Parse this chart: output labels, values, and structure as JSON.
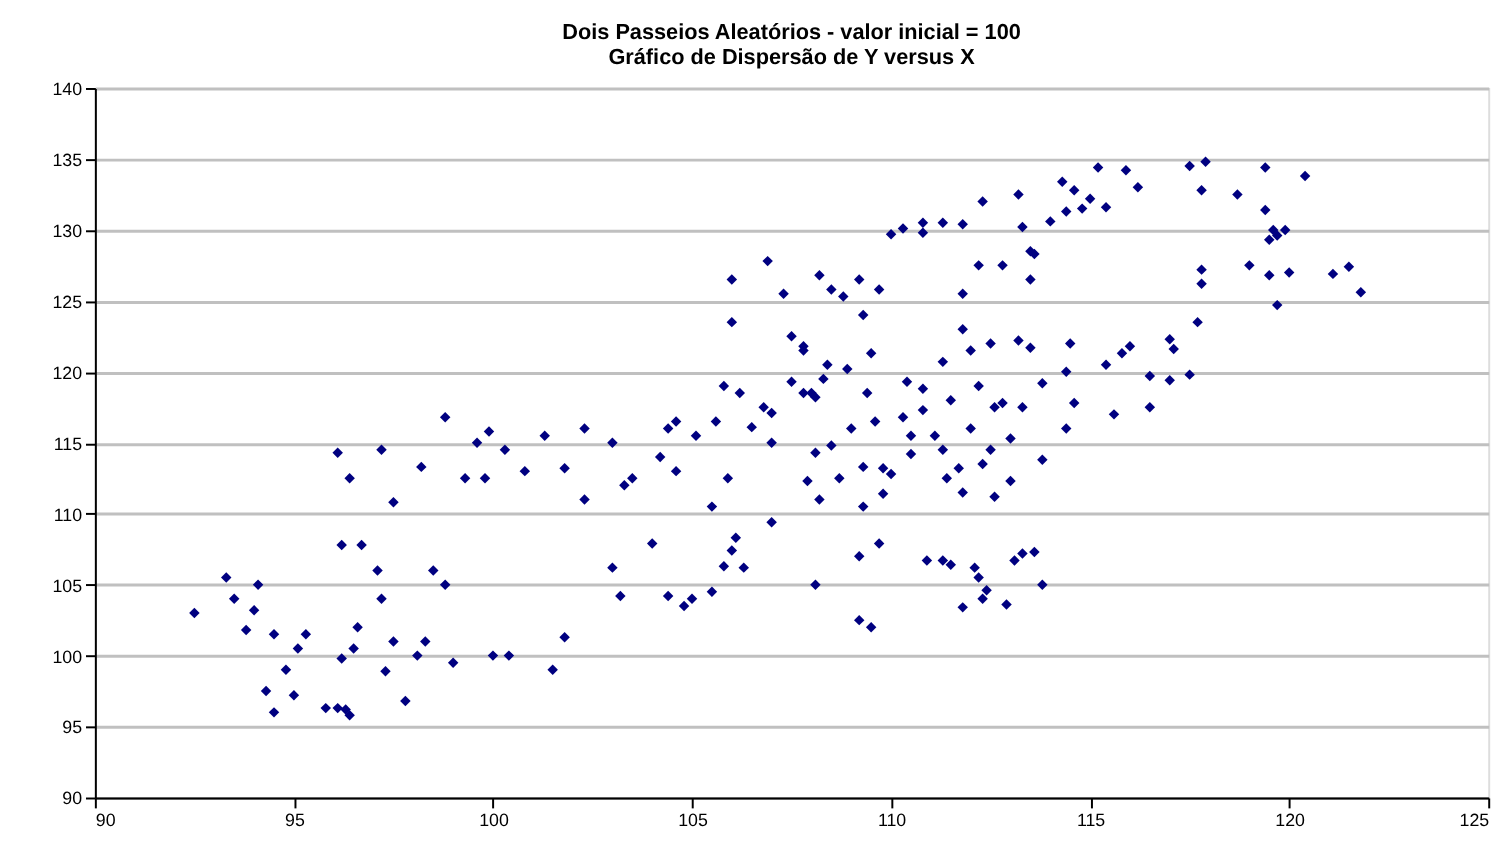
{
  "chart_data": {
    "type": "scatter",
    "title": "Dois Passeios Aleatórios - valor inicial = 100",
    "subtitle": "Gráfico de Dispersão de Y versus X",
    "xlim": [
      90,
      125
    ],
    "xticks": [
      90,
      95,
      100,
      105,
      110,
      115,
      120,
      125
    ],
    "ylim": [
      90,
      140
    ],
    "yticks": [
      90,
      95,
      100,
      105,
      110,
      115,
      120,
      125,
      130,
      135,
      140
    ],
    "grid": "y",
    "marker": "diamond",
    "series": [
      {
        "color": "#000080",
        "x": [
          92.5,
          93.3,
          93.5,
          93.8,
          94.0,
          94.1,
          94.5,
          94.8,
          95.0,
          95.1,
          94.3,
          94.5,
          95.3,
          95.8,
          96.1,
          96.3,
          96.4,
          96.2,
          96.5,
          96.6,
          96.2,
          96.7,
          97.1,
          97.2,
          97.3,
          97.5,
          97.8,
          98.1,
          98.3,
          98.5,
          98.8,
          99.0,
          100.0,
          100.4,
          101.5,
          101.8,
          96.1,
          96.4,
          97.2,
          97.5,
          98.2,
          98.8,
          99.3,
          99.8,
          99.6,
          99.9,
          100.3,
          100.8,
          101.3,
          101.8,
          102.3,
          102.3,
          103.0,
          103.3,
          103.5,
          104.2,
          104.4,
          104.6,
          104.4,
          104.0,
          104.8,
          105.0,
          105.5,
          105.8,
          106.3,
          103.0,
          103.2,
          105.6,
          105.8,
          106.2,
          105.1,
          106.0,
          106.0,
          106.9,
          107.3,
          107.5,
          106.8,
          107.0,
          107.8,
          107.8,
          108.1,
          115.2,
          115.9,
          116.2,
          117.5,
          117.9,
          117.8,
          118.7,
          119.4,
          120.4,
          119.4,
          119.6,
          119.9,
          119.5,
          119.7,
          119.0,
          119.5,
          120.0,
          119.7,
          121.1,
          121.5,
          121.8,
          117.8,
          117.8,
          117.7,
          117.0,
          117.1,
          117.5,
          117.0,
          116.5,
          116.5,
          116.0,
          115.8,
          115.4,
          115.6,
          114.5,
          114.4,
          114.6,
          114.4,
          113.8,
          113.5,
          113.2,
          112.5,
          112.0,
          111.8,
          111.8,
          112.2,
          112.8,
          113.5,
          113.6,
          113.3,
          113.5,
          114.0,
          114.4,
          114.8,
          115.4,
          115.0,
          114.6,
          114.3,
          113.2,
          112.3,
          111.8,
          111.3,
          110.8,
          110.3,
          110.0,
          110.8,
          109.2,
          108.5,
          108.8,
          109.7,
          109.3,
          108.2,
          107.8,
          108.4,
          108.9,
          109.5,
          110.4,
          110.8,
          111.3,
          111.5,
          112.2,
          112.6,
          112.0,
          112.5,
          112.3,
          111.7,
          111.3,
          110.5,
          110.3,
          109.6,
          109.4,
          109.0,
          108.5,
          108.1,
          108.7,
          109.3,
          109.8,
          110.5,
          111.1,
          111.4,
          111.8,
          112.6,
          113.0,
          113.8,
          113.3,
          113.0,
          112.8,
          110.8,
          108.3,
          108.0,
          109.2,
          109.7,
          110.9,
          111.3,
          111.5,
          112.1,
          112.2,
          112.3,
          112.4,
          113.1,
          113.3,
          113.6,
          113.8,
          111.8,
          112.9,
          109.2,
          109.5,
          109.8,
          109.3,
          110.0,
          108.1,
          107.5,
          107.0,
          106.5,
          107.9,
          108.2,
          107.0,
          106.0,
          106.1,
          104.6,
          105.9,
          105.5
        ],
        "values": [
          103.0,
          105.5,
          104.0,
          101.8,
          103.2,
          105.0,
          101.5,
          99.0,
          97.2,
          100.5,
          97.5,
          96.0,
          101.5,
          96.3,
          96.3,
          96.2,
          95.8,
          99.8,
          100.5,
          102.0,
          107.8,
          107.8,
          106.0,
          104.0,
          98.9,
          101.0,
          96.8,
          100.0,
          101.0,
          106.0,
          105.0,
          99.5,
          100.0,
          100.0,
          99.0,
          101.3,
          114.3,
          112.5,
          114.5,
          110.8,
          113.3,
          116.8,
          112.5,
          112.5,
          115.0,
          115.8,
          114.5,
          113.0,
          115.5,
          113.2,
          116.0,
          111.0,
          115.0,
          112.0,
          112.5,
          114.0,
          116.0,
          113.0,
          104.2,
          107.9,
          103.5,
          104.0,
          104.5,
          106.3,
          106.2,
          106.2,
          104.2,
          116.5,
          119.0,
          118.5,
          115.5,
          123.5,
          126.5,
          127.8,
          125.5,
          122.5,
          117.5,
          115.0,
          118.5,
          121.5,
          105.0,
          134.4,
          134.2,
          133.0,
          134.5,
          134.8,
          132.8,
          132.5,
          134.4,
          133.8,
          131.4,
          130.0,
          130.0,
          129.3,
          129.6,
          127.5,
          126.8,
          127.0,
          124.7,
          126.9,
          127.4,
          125.6,
          127.2,
          126.2,
          123.5,
          122.3,
          121.6,
          119.8,
          119.4,
          119.7,
          117.5,
          121.8,
          121.3,
          120.5,
          117.0,
          122.0,
          120.0,
          117.8,
          116.0,
          119.2,
          121.7,
          122.2,
          122.0,
          121.5,
          123.0,
          125.5,
          127.5,
          127.5,
          126.5,
          128.3,
          130.2,
          128.5,
          130.6,
          131.3,
          131.5,
          131.6,
          132.2,
          132.8,
          133.4,
          132.5,
          132.0,
          130.4,
          130.5,
          130.5,
          130.1,
          129.7,
          129.8,
          126.5,
          125.8,
          125.3,
          125.8,
          124.0,
          126.8,
          121.8,
          120.5,
          120.2,
          121.3,
          119.3,
          118.8,
          120.7,
          118.0,
          119.0,
          117.5,
          116.0,
          114.5,
          113.5,
          113.2,
          114.5,
          115.5,
          116.8,
          116.5,
          118.5,
          116.0,
          114.8,
          114.3,
          112.5,
          113.3,
          113.2,
          114.2,
          115.5,
          112.5,
          111.5,
          111.2,
          112.3,
          113.8,
          117.5,
          115.3,
          117.8,
          117.3,
          119.5,
          118.5,
          107.0,
          107.9,
          106.7,
          106.7,
          106.4,
          106.2,
          105.5,
          104.0,
          104.6,
          106.7,
          107.2,
          107.3,
          105.0,
          103.4,
          103.6,
          102.5,
          102.0,
          111.4,
          110.5,
          112.8,
          118.2,
          119.3,
          117.1,
          116.1,
          112.3,
          111.0,
          109.4,
          107.4,
          108.3,
          116.5,
          112.5,
          110.5
        ]
      }
    ]
  }
}
